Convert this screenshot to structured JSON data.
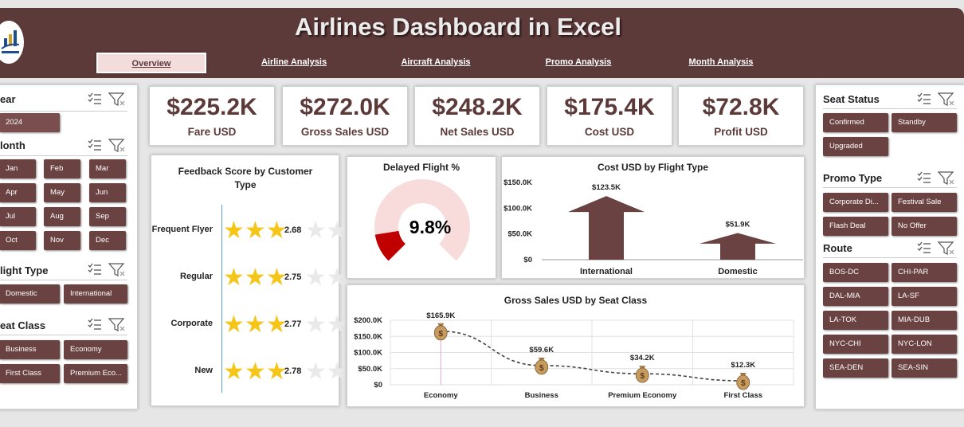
{
  "header": {
    "title": "Airlines Dashboard in Excel",
    "nav": [
      {
        "label": "Overview",
        "active": true
      },
      {
        "label": "Airline Analysis"
      },
      {
        "label": "Aircraft Analysis"
      },
      {
        "label": "Promo Analysis"
      },
      {
        "label": "Month Analysis"
      }
    ]
  },
  "left_slicers": {
    "year": {
      "title": "ear",
      "items": [
        "2024"
      ]
    },
    "month": {
      "title": "lonth",
      "items": [
        "Jan",
        "Feb",
        "Mar",
        "Apr",
        "May",
        "Jun",
        "Jul",
        "Aug",
        "Sep",
        "Oct",
        "Nov",
        "Dec"
      ]
    },
    "flight_type": {
      "title": "light Type",
      "items": [
        "Domestic",
        "International"
      ]
    },
    "seat_class": {
      "title": "eat Class",
      "items": [
        "Business",
        "Economy",
        "First Class",
        "Premium Eco..."
      ]
    }
  },
  "right_slicers": {
    "seat_status": {
      "title": "Seat Status",
      "items": [
        "Confirmed",
        "Standby",
        "Upgraded"
      ]
    },
    "promo_type": {
      "title": "Promo Type",
      "items": [
        "Corporate Di...",
        "Festival Sale",
        "Flash Deal",
        "No Offer"
      ]
    },
    "route": {
      "title": "Route",
      "items": [
        "BOS-DC",
        "CHI-PAR",
        "DAL-MIA",
        "LA-SF",
        "LA-TOK",
        "MIA-DUB",
        "NYC-CHI",
        "NYC-LON",
        "SEA-DEN",
        "SEA-SIN"
      ]
    }
  },
  "kpis": [
    {
      "value": "$225.2K",
      "label": "Fare USD"
    },
    {
      "value": "$272.0K",
      "label": "Gross Sales USD"
    },
    {
      "value": "$248.2K",
      "label": "Net Sales USD"
    },
    {
      "value": "$175.4K",
      "label": "Cost USD"
    },
    {
      "value": "$72.8K",
      "label": "Profit USD"
    }
  ],
  "colors": {
    "header": "#5c3a3a",
    "chip": "#6b4242",
    "star": "#f5c518",
    "gauge_fill": "#c00000",
    "gauge_bg": "#f8dcdc",
    "bar": "#6b4242"
  },
  "chart_data": [
    {
      "type": "bar",
      "title": "Feedback Score by Customer Type",
      "categories": [
        "Frequent Flyer",
        "Regular",
        "Corporate",
        "New"
      ],
      "values": [
        2.68,
        2.75,
        2.77,
        2.78
      ],
      "labels": [
        "2.68",
        "2.75",
        "2.77",
        "2.78"
      ],
      "max_stars": 5
    },
    {
      "type": "pie",
      "title": "Delayed Flight %",
      "value": 9.8,
      "label": "9.8%"
    },
    {
      "type": "bar",
      "title": "Cost USD by Flight Type",
      "categories": [
        "International",
        "Domestic"
      ],
      "values": [
        123.5,
        51.9
      ],
      "data_labels": [
        "$123.5K",
        "$51.9K"
      ],
      "yticks": [
        "$0",
        "$50.0K",
        "$100.0K",
        "$150.0K"
      ],
      "ylim": [
        0,
        150
      ]
    },
    {
      "type": "line",
      "title": "Gross Sales USD by Seat Class",
      "categories": [
        "Economy",
        "Business",
        "Premium Economy",
        "First Class"
      ],
      "values": [
        165.9,
        59.6,
        34.2,
        12.3
      ],
      "data_labels": [
        "$165.9K",
        "$59.6K",
        "$34.2K",
        "$12.3K"
      ],
      "yticks": [
        "$0",
        "$50.0K",
        "$100.0K",
        "$150.0K",
        "$200.0K"
      ],
      "ylim": [
        0,
        200
      ]
    }
  ]
}
